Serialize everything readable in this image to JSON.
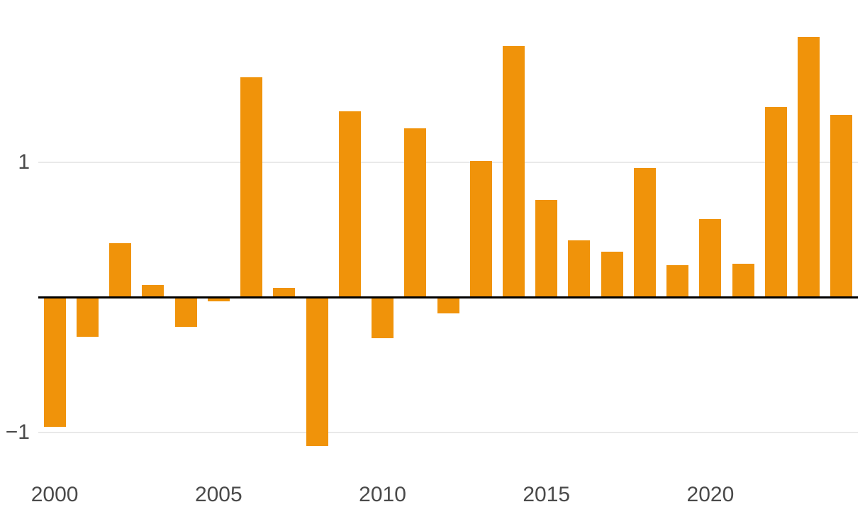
{
  "chart_data": {
    "type": "bar",
    "title": "",
    "xlabel": "",
    "ylabel": "",
    "categories": [
      2000,
      2001,
      2002,
      2003,
      2004,
      2005,
      2006,
      2007,
      2008,
      2009,
      2010,
      2011,
      2012,
      2013,
      2014,
      2015,
      2016,
      2017,
      2018,
      2019,
      2020,
      2021,
      2022,
      2023,
      2024
    ],
    "values": [
      -0.96,
      -0.29,
      0.4,
      0.09,
      -0.22,
      -0.03,
      1.63,
      0.07,
      -1.1,
      1.38,
      -0.3,
      1.25,
      -0.12,
      1.01,
      1.86,
      0.72,
      0.42,
      0.34,
      0.96,
      0.24,
      0.58,
      0.25,
      1.41,
      1.93,
      1.35
    ],
    "ylim": [
      -1.3,
      2.05
    ],
    "grid": "horizontal gridlines at 1 and -1, solid black zero baseline",
    "legend_position": "none",
    "y_ticks": [
      {
        "value": 1,
        "label": "1"
      },
      {
        "value": -1,
        "label": "−1"
      }
    ],
    "x_ticks": [
      {
        "year": 2000,
        "label": "2000"
      },
      {
        "year": 2005,
        "label": "2005"
      },
      {
        "year": 2010,
        "label": "2010"
      },
      {
        "year": 2015,
        "label": "2015"
      },
      {
        "year": 2020,
        "label": "2020"
      }
    ],
    "colors": {
      "bar": "#F0930A",
      "gridline": "#E9E9E9",
      "zero_axis": "#000000",
      "tick_label": "#4A4A4A",
      "background": "#FFFFFF"
    }
  }
}
